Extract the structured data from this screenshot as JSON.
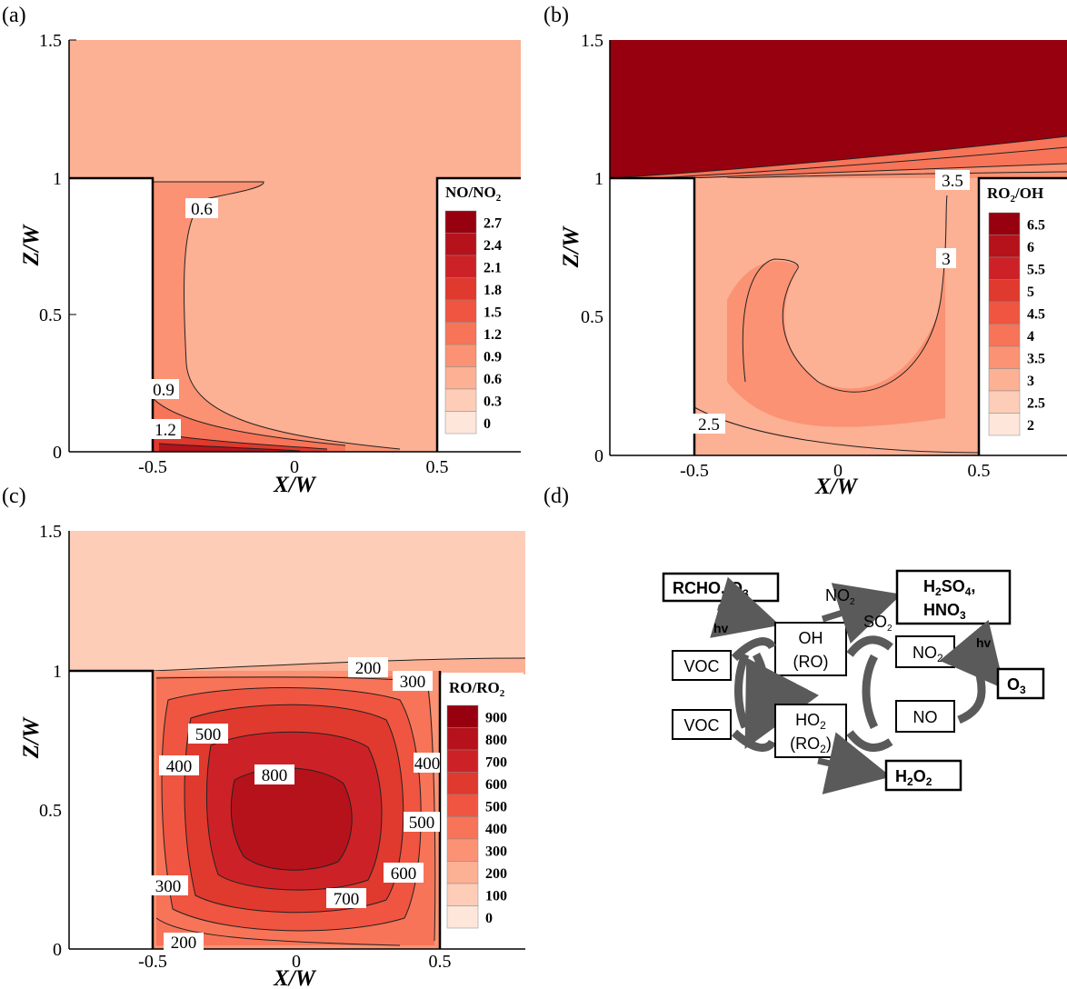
{
  "chart_data": [
    {
      "type": "heatmap",
      "panel_label": "(a)",
      "xlabel": "X/W",
      "ylabel": "Z/W",
      "xticks": [
        "-0.5",
        "0",
        "0.5"
      ],
      "yticks": [
        "0",
        "0.5",
        "1",
        "1.5"
      ],
      "legend_title": "NO/NO",
      "legend_title_sub": "2",
      "legend_values": [
        "2.7",
        "2.4",
        "2.1",
        "1.8",
        "1.5",
        "1.2",
        "0.9",
        "0.6",
        "0.3",
        "0"
      ],
      "legend_colors": [
        "#97000f",
        "#b5121b",
        "#cc2227",
        "#e0392e",
        "#ef5540",
        "#f77458",
        "#fb9273",
        "#fcb094",
        "#fdcdb8",
        "#fee6da"
      ],
      "contour_labels": [
        "0.6",
        "0.9",
        "1.2"
      ]
    },
    {
      "type": "heatmap",
      "panel_label": "(b)",
      "xlabel": "X/W",
      "ylabel": "Z/W",
      "xticks": [
        "-0.5",
        "0",
        "0.5"
      ],
      "yticks": [
        "0",
        "0.5",
        "1",
        "1.5"
      ],
      "legend_title": "RO",
      "legend_title_sub": "2",
      "legend_title_suffix": "/OH",
      "legend_values": [
        "6.5",
        "6",
        "5.5",
        "5",
        "4.5",
        "4",
        "3.5",
        "3",
        "2.5",
        "2"
      ],
      "legend_colors": [
        "#97000f",
        "#b5121b",
        "#cc2227",
        "#e0392e",
        "#ef5540",
        "#f77458",
        "#fb9273",
        "#fcb094",
        "#fdcdb8",
        "#fee6da"
      ],
      "contour_labels": [
        "3.5",
        "3",
        "2.5"
      ]
    },
    {
      "type": "heatmap",
      "panel_label": "(c)",
      "xlabel": "X/W",
      "ylabel": "Z/W",
      "xticks": [
        "-0.5",
        "0",
        "0.5"
      ],
      "yticks": [
        "0",
        "0.5",
        "1",
        "1.5"
      ],
      "legend_title": "RO/RO",
      "legend_title_sub": "2",
      "legend_values": [
        "900",
        "800",
        "700",
        "600",
        "500",
        "400",
        "300",
        "200",
        "100",
        "0"
      ],
      "legend_colors": [
        "#97000f",
        "#b5121b",
        "#cc2227",
        "#e0392e",
        "#ef5540",
        "#f77458",
        "#fb9273",
        "#fcb094",
        "#fdcdb8",
        "#fee6da"
      ],
      "contour_labels": [
        "200",
        "300",
        "500",
        "400",
        "800",
        "400",
        "500",
        "300",
        "600",
        "700",
        "200"
      ]
    }
  ],
  "diagram": {
    "panel_label": "(d)",
    "rcho": "RCHO, O",
    "rcho_sub": "3",
    "hv1": "hv",
    "no2_small": "NO",
    "no2_small_sub": "2",
    "so2_small": "SO",
    "so2_small_sub": "2",
    "h2so4_l1a": "H",
    "h2so4_l1b": "2",
    "h2so4_l1c": "SO",
    "h2so4_l1d": "4",
    "h2so4_l1e": ",",
    "hno3_a": "HNO",
    "hno3_b": "3",
    "oh": "OH",
    "ro": "(RO)",
    "ho2_a": "HO",
    "ho2_b": "2",
    "ro2_a": "(RO",
    "ro2_b": "2",
    "ro2_c": ")",
    "voc1": "VOC",
    "voc2": "VOC",
    "nobox_a": "NO",
    "nobox_b": "2",
    "nobox2": "NO",
    "hv2": "hv",
    "o3_a": "O",
    "o3_b": "3",
    "h2o2_a": "H",
    "h2o2_b": "2",
    "h2o2_c": "O",
    "h2o2_d": "2"
  }
}
